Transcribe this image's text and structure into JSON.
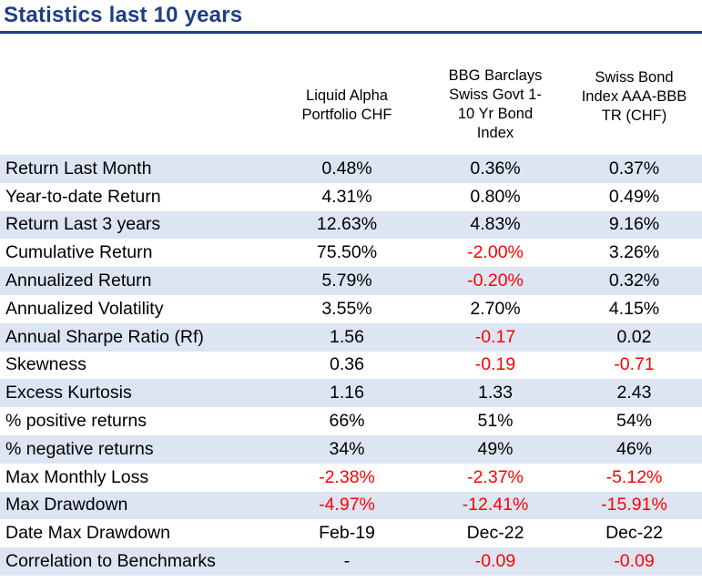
{
  "title": "Statistics last 10 years",
  "columns": [
    {
      "lines": [
        "Liquid Alpha",
        "Portfolio CHF"
      ]
    },
    {
      "lines": [
        "BBG Barclays",
        "Swiss Govt 1-",
        "10 Yr Bond",
        "Index"
      ]
    },
    {
      "lines": [
        "Swiss Bond",
        "Index AAA-BBB",
        "TR (CHF)"
      ]
    }
  ],
  "rows": [
    {
      "label": "Return Last Month",
      "values": [
        "0.48%",
        "0.36%",
        "0.37%"
      ]
    },
    {
      "label": "Year-to-date Return",
      "values": [
        "4.31%",
        "0.80%",
        "0.49%"
      ]
    },
    {
      "label": "Return Last 3 years",
      "values": [
        "12.63%",
        "4.83%",
        "9.16%"
      ]
    },
    {
      "label": "Cumulative Return",
      "values": [
        "75.50%",
        "-2.00%",
        "3.26%"
      ]
    },
    {
      "label": "Annualized Return",
      "values": [
        "5.79%",
        "-0.20%",
        "0.32%"
      ]
    },
    {
      "label": "Annualized Volatility",
      "values": [
        "3.55%",
        "2.70%",
        "4.15%"
      ]
    },
    {
      "label": "Annual Sharpe Ratio (Rf)",
      "values": [
        "1.56",
        "-0.17",
        "0.02"
      ]
    },
    {
      "label": "Skewness",
      "values": [
        "0.36",
        "-0.19",
        "-0.71"
      ]
    },
    {
      "label": "Excess Kurtosis",
      "values": [
        "1.16",
        "1.33",
        "2.43"
      ]
    },
    {
      "label": "% positive returns",
      "values": [
        "66%",
        "51%",
        "54%"
      ]
    },
    {
      "label": "% negative returns",
      "values": [
        "34%",
        "49%",
        "46%"
      ]
    },
    {
      "label": "Max Monthly Loss",
      "values": [
        "-2.38%",
        "-2.37%",
        "-5.12%"
      ]
    },
    {
      "label": "Max Drawdown",
      "values": [
        "-4.97%",
        "-12.41%",
        "-15.91%"
      ]
    },
    {
      "label": "Date Max Drawdown",
      "values": [
        "Feb-19",
        "Dec-22",
        "Dec-22"
      ]
    },
    {
      "label": "Correlation to Benchmarks",
      "values": [
        "-",
        "-0.09",
        "-0.09"
      ]
    }
  ],
  "colors": {
    "title": "#1f3f86",
    "band": "#dde5f3",
    "negative": "#ff0000"
  }
}
